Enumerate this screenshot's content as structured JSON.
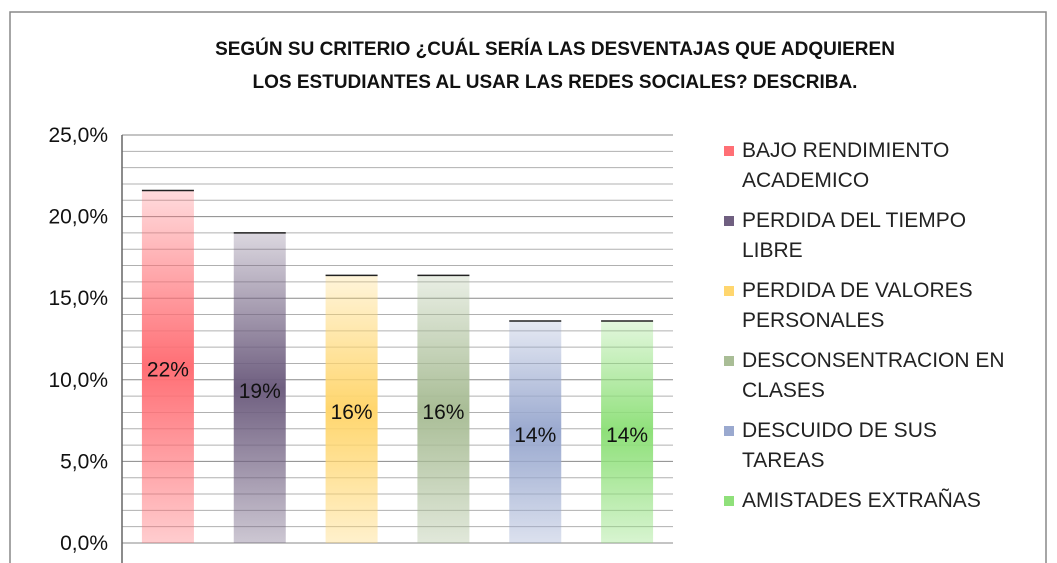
{
  "chart_data": {
    "type": "bar",
    "title": [
      "SEGÚN SU CRITERIO ¿CUÁL SERÍA LAS DESVENTAJAS QUE ADQUIEREN",
      "LOS ESTUDIANTES AL USAR LAS REDES SOCIALES? DESCRIBA."
    ],
    "categories": [
      "BAJO RENDIMIENTO ACADEMICO",
      "PERDIDA DEL TIEMPO LIBRE",
      "PERDIDA DE VALORES PERSONALES",
      "DESCONSENTRACION EN CLASES",
      "DESCUIDO DE SUS TAREAS",
      "AMISTADES EXTRAÑAS"
    ],
    "values": [
      21.6,
      19.0,
      16.4,
      16.4,
      13.6,
      13.6
    ],
    "value_labels": [
      "22%",
      "19%",
      "16%",
      "16%",
      "14%",
      "14%"
    ],
    "colors": [
      "#ff6f75",
      "#6f5f80",
      "#ffd66e",
      "#a9bd96",
      "#9aa9cf",
      "#8fe07a"
    ],
    "ylim": [
      0,
      25
    ],
    "yticks": [
      {
        "value": 0,
        "label": "0,0%"
      },
      {
        "value": 5,
        "label": "5,0%"
      },
      {
        "value": 10,
        "label": "10,0%"
      },
      {
        "value": 15,
        "label": "15,0%"
      },
      {
        "value": 20,
        "label": "20,0%"
      },
      {
        "value": 25,
        "label": "25,0%"
      }
    ],
    "minor_yticks": [
      1,
      2,
      3,
      4,
      6,
      7,
      8,
      9,
      11,
      12,
      13,
      14,
      16,
      17,
      18,
      19,
      21,
      22,
      23,
      24
    ],
    "grid": true,
    "legend": "right"
  }
}
